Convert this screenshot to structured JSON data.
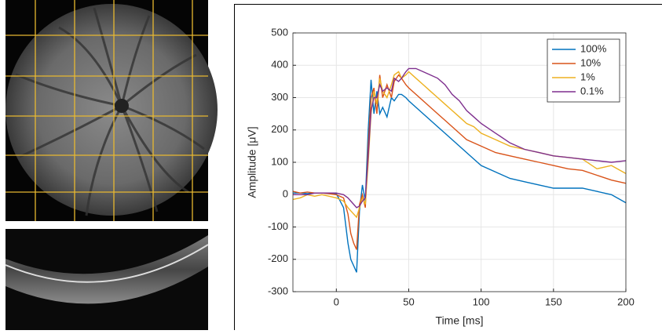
{
  "chart_data": {
    "type": "line",
    "x_label": "Time [ms]",
    "y_label": "Amplitude [μV]",
    "x": [
      -30,
      -25,
      -20,
      -15,
      -10,
      -5,
      0,
      5,
      8,
      10,
      12,
      14,
      16,
      18,
      20,
      22,
      24,
      26,
      28,
      30,
      32,
      35,
      38,
      40,
      43,
      45,
      48,
      50,
      55,
      60,
      65,
      70,
      75,
      80,
      85,
      90,
      95,
      100,
      110,
      120,
      130,
      140,
      150,
      160,
      170,
      180,
      190,
      200
    ],
    "series": [
      {
        "name": "100%",
        "color": "#0072BD",
        "values": [
          5,
          5,
          3,
          5,
          5,
          5,
          3,
          -40,
          -150,
          -200,
          -220,
          -240,
          -50,
          30,
          -20,
          200,
          355,
          250,
          320,
          250,
          270,
          240,
          300,
          290,
          310,
          310,
          300,
          290,
          270,
          250,
          230,
          210,
          190,
          170,
          150,
          130,
          110,
          90,
          70,
          50,
          40,
          30,
          20,
          20,
          20,
          10,
          0,
          -25
        ]
      },
      {
        "name": "10%",
        "color": "#D95319",
        "values": [
          10,
          5,
          8,
          5,
          5,
          3,
          0,
          -10,
          -60,
          -120,
          -150,
          -170,
          -30,
          0,
          -40,
          150,
          300,
          330,
          250,
          370,
          300,
          340,
          300,
          350,
          370,
          360,
          340,
          330,
          310,
          290,
          270,
          250,
          230,
          210,
          190,
          170,
          160,
          150,
          130,
          120,
          110,
          100,
          90,
          80,
          75,
          60,
          45,
          35
        ]
      },
      {
        "name": "1%",
        "color": "#EDB120",
        "values": [
          -15,
          -10,
          0,
          -5,
          0,
          -5,
          -10,
          -20,
          -40,
          -50,
          -60,
          -70,
          -40,
          -10,
          -30,
          100,
          250,
          320,
          280,
          360,
          320,
          300,
          340,
          370,
          380,
          360,
          370,
          380,
          360,
          340,
          320,
          300,
          280,
          260,
          240,
          220,
          210,
          190,
          170,
          150,
          140,
          130,
          120,
          115,
          110,
          80,
          90,
          65
        ]
      },
      {
        "name": "0.1%",
        "color": "#7E2F8E",
        "values": [
          0,
          0,
          0,
          5,
          5,
          5,
          5,
          0,
          -10,
          -20,
          -30,
          -40,
          -35,
          -20,
          -10,
          120,
          260,
          300,
          300,
          340,
          320,
          330,
          320,
          360,
          350,
          360,
          380,
          390,
          390,
          380,
          370,
          360,
          340,
          310,
          290,
          260,
          240,
          220,
          190,
          160,
          140,
          130,
          120,
          115,
          110,
          105,
          100,
          105
        ]
      }
    ],
    "xlim": [
      -30,
      200
    ],
    "xticks": [
      0,
      50,
      100,
      150,
      200
    ],
    "ylim": [
      -300,
      500
    ],
    "yticks": [
      -300,
      -200,
      -100,
      0,
      100,
      200,
      300,
      400,
      500
    ],
    "grid": true,
    "legend": "upper right"
  }
}
